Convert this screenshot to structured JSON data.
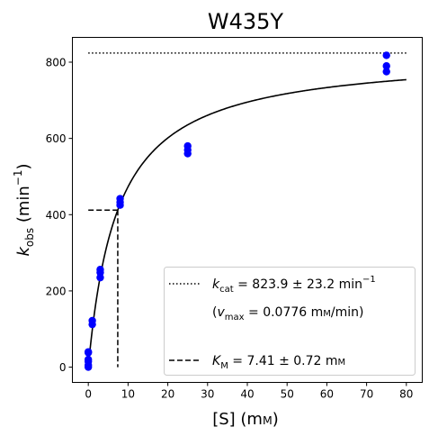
{
  "chart_data": {
    "type": "scatter",
    "title": "W435Y",
    "xlabel": "[S] (mM)",
    "ylabel": "k_obs (min^-1)",
    "xlim": [
      -4,
      84
    ],
    "ylim": [
      -40,
      865
    ],
    "xticks": [
      0,
      10,
      20,
      30,
      40,
      50,
      60,
      70,
      80
    ],
    "yticks": [
      0,
      200,
      400,
      600,
      800
    ],
    "grid": false,
    "legend_placement": "lower-right",
    "points": {
      "x": [
        0,
        0,
        0,
        0,
        0,
        0,
        1,
        1,
        3,
        3,
        3,
        8,
        8,
        8,
        25,
        25,
        25,
        75,
        75,
        75
      ],
      "y": [
        0,
        5,
        15,
        20,
        38,
        40,
        112,
        122,
        235,
        248,
        256,
        425,
        433,
        442,
        560,
        570,
        580,
        775,
        790,
        818
      ],
      "color": "#0000ff"
    },
    "fit": {
      "model": "Michaelis-Menten",
      "kcat": 823.9,
      "km": 7.41,
      "x_range": [
        0,
        80
      ],
      "color": "#000000"
    },
    "guides": {
      "kcat_line_y": 823.9,
      "kcat_line_x_range": [
        0,
        80
      ],
      "km_x": 7.41,
      "half_kcat_y": 411.95
    },
    "legend": {
      "kcat_text": "k_cat = 823.9 ± 23.2 min⁻¹",
      "vmax_text": "(v_max = 0.0776 mM/min)",
      "km_text": "K_M = 7.41 ± 0.72 mM"
    }
  }
}
